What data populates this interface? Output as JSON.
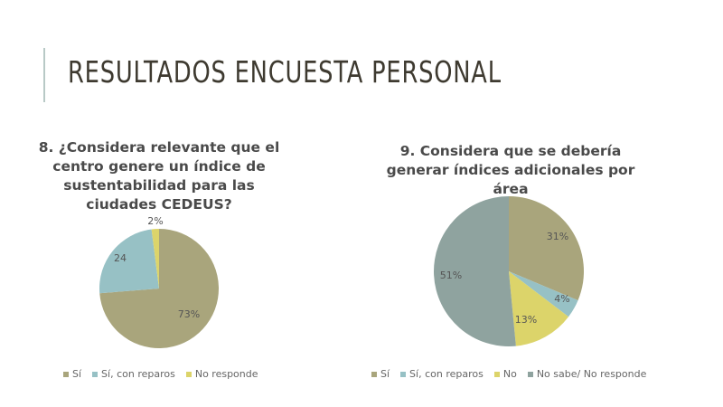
{
  "page": {
    "title": "RESULTADOS ENCUESTA PERSONAL"
  },
  "colors": {
    "si": "#a9a57c",
    "si_con_reparos": "#97c1c5",
    "no": "#dcd46a",
    "no_sabe": "#8fa39f",
    "accent": "#b8c9c6"
  },
  "chart_data": [
    {
      "type": "pie",
      "title": "8. ¿Considera relevante que el centro genere un índice de sustentabilidad para las ciudades CEDEUS?",
      "categories": [
        "Sí",
        "Sí, con reparos",
        "No responde"
      ],
      "values": [
        73,
        24,
        2
      ],
      "data_labels": [
        "73%",
        "24",
        "2%"
      ],
      "colors": [
        "#a9a57c",
        "#97c1c5",
        "#dcd46a"
      ],
      "legend": "bottom",
      "start_angle": "top-clockwise"
    },
    {
      "type": "pie",
      "title": "9. Considera que se debería generar índices adicionales por área",
      "categories": [
        "Sí",
        "Sí, con reparos",
        "No",
        "No sabe/ No responde"
      ],
      "values": [
        31,
        4,
        13,
        51
      ],
      "data_labels": [
        "31%",
        "4%",
        "13%",
        "51%"
      ],
      "colors": [
        "#a9a57c",
        "#97c1c5",
        "#dcd46a",
        "#8fa39f"
      ],
      "legend": "bottom",
      "start_angle": "top-clockwise"
    }
  ]
}
